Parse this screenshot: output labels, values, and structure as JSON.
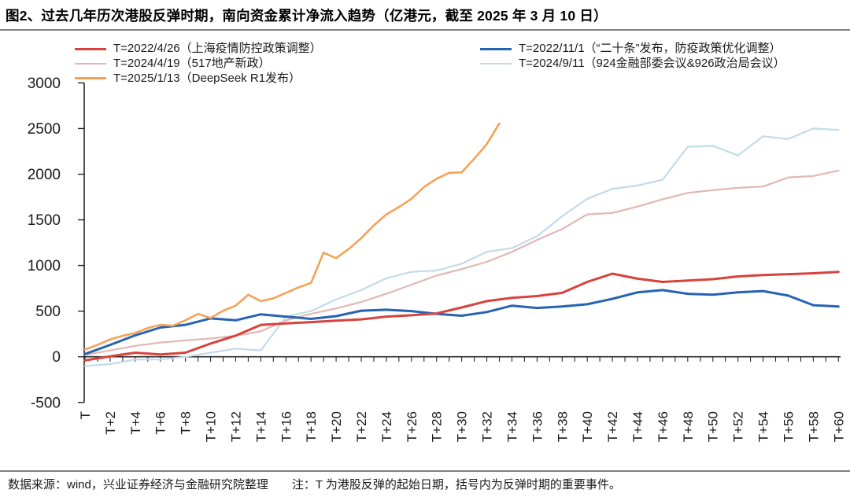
{
  "page": {
    "title": "图2、过去几年历次港股反弹时期，南向资金累计净流入趋势（亿港元，截至 2025 年 3 月 10 日）",
    "footer": {
      "source": "数据来源：wind，兴业证券经济与金融研究院整理",
      "note": "注：T 为港股反弹的起始日期，括号内为反弹时期的重要事件。"
    }
  },
  "chart_data": {
    "type": "line",
    "title": "南向资金累计净流入趋势",
    "unit": "亿港元",
    "grid": false,
    "legend_position": "top",
    "x_axis": {
      "min": 0,
      "max": 60,
      "label_every": 2,
      "tick_labels": [
        "T",
        "T+2",
        "T+4",
        "T+6",
        "T+8",
        "T+10",
        "T+12",
        "T+14",
        "T+16",
        "T+18",
        "T+20",
        "T+22",
        "T+24",
        "T+26",
        "T+28",
        "T+30",
        "T+32",
        "T+34",
        "T+36",
        "T+38",
        "T+40",
        "T+42",
        "T+44",
        "T+46",
        "T+48",
        "T+50",
        "T+52",
        "T+54",
        "T+56",
        "T+58",
        "T+60"
      ]
    },
    "y_axis": {
      "min": -500,
      "max": 3000,
      "tick_interval": 500,
      "ticks": [
        3000,
        2500,
        2000,
        1500,
        1000,
        500,
        0,
        -500
      ],
      "tick_labels": [
        "3000",
        "2500",
        "2000",
        "1500",
        "1000",
        "500",
        "0",
        "-500"
      ]
    },
    "x_default": [
      0,
      2,
      4,
      6,
      8,
      10,
      12,
      14,
      16,
      18,
      20,
      22,
      24,
      26,
      28,
      30,
      32,
      34,
      36,
      38,
      40,
      42,
      44,
      46,
      48,
      50,
      52,
      54,
      56,
      58,
      60
    ],
    "series": [
      {
        "key": "s2024_04_19",
        "name": "T=2024/4/19（517地产新政）",
        "color": "#e2b7b3",
        "line_width": 2.2,
        "legend_col": 0,
        "legend_row": 1,
        "values": [
          20,
          70,
          120,
          155,
          180,
          200,
          230,
          280,
          400,
          470,
          530,
          600,
          690,
          790,
          890,
          960,
          1040,
          1150,
          1280,
          1400,
          1560,
          1575,
          1645,
          1725,
          1795,
          1825,
          1850,
          1865,
          1965,
          1980,
          2040
        ]
      },
      {
        "key": "s2024_09_11",
        "name": "T=2024/9/11（924金融部委会议&926政治局会议）",
        "color": "#c2dbe9",
        "line_width": 2.2,
        "legend_col": 1,
        "legend_row": 1,
        "values": [
          -100,
          -80,
          -30,
          -30,
          0,
          45,
          90,
          70,
          440,
          500,
          630,
          730,
          860,
          930,
          945,
          1020,
          1150,
          1190,
          1320,
          1540,
          1730,
          1840,
          1875,
          1940,
          2300,
          2310,
          2205,
          2415,
          2385,
          2500,
          2485
        ]
      },
      {
        "key": "s2022_11_01",
        "name": "T=2022/11/1（“二十条”发布，防疫政策优化调整）",
        "color": "#2663b2",
        "line_width": 3,
        "legend_col": 1,
        "legend_row": 0,
        "values": [
          30,
          130,
          235,
          320,
          350,
          420,
          400,
          465,
          440,
          415,
          445,
          505,
          515,
          500,
          470,
          450,
          490,
          560,
          535,
          550,
          575,
          635,
          705,
          730,
          690,
          680,
          705,
          720,
          670,
          565,
          550
        ]
      },
      {
        "key": "s2022_04_26",
        "name": "T=2022/4/26（上海疫情防控政策调整）",
        "color": "#d8423d",
        "line_width": 3,
        "legend_col": 0,
        "legend_row": 0,
        "values": [
          -40,
          5,
          45,
          25,
          45,
          145,
          232,
          350,
          365,
          380,
          395,
          410,
          440,
          455,
          475,
          540,
          610,
          645,
          665,
          700,
          820,
          910,
          855,
          820,
          835,
          850,
          880,
          895,
          905,
          915,
          930
        ]
      },
      {
        "key": "s2025_01_13",
        "name": "T=2025/1/13（DeepSeek R1发布）",
        "color": "#f5a257",
        "line_width": 2.6,
        "legend_col": 0,
        "legend_row": 2,
        "x": [
          0,
          1,
          2,
          3,
          4,
          5,
          6,
          7,
          8,
          9,
          10,
          11,
          12,
          13,
          14,
          15,
          16,
          17,
          18,
          19,
          20,
          21,
          22,
          23,
          24,
          25,
          26,
          27,
          28,
          29,
          30,
          31,
          32,
          33
        ],
        "values": [
          80,
          130,
          190,
          230,
          260,
          315,
          350,
          340,
          400,
          470,
          425,
          505,
          560,
          680,
          610,
          640,
          700,
          760,
          810,
          1140,
          1080,
          1180,
          1300,
          1440,
          1560,
          1640,
          1730,
          1860,
          1950,
          2015,
          2020,
          2170,
          2330,
          2555
        ]
      }
    ]
  }
}
